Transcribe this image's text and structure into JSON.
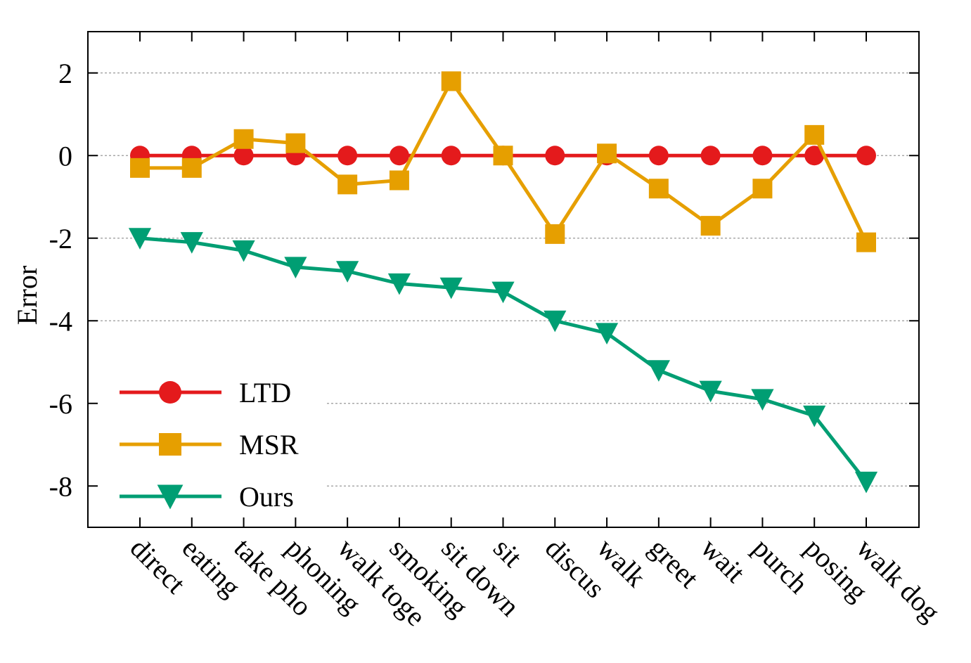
{
  "chart_data": {
    "type": "line",
    "title": "",
    "xlabel": "",
    "ylabel": "Error",
    "categories": [
      "direct",
      "eating",
      "take pho",
      "phoning",
      "walk toge",
      "smoking",
      "sit down",
      "sit",
      "discus",
      "walk",
      "greet",
      "wait",
      "purch",
      "posing",
      "walk dog"
    ],
    "ylim": [
      -9,
      3
    ],
    "yticks": [
      "2",
      "0",
      "-2",
      "-4",
      "-6",
      "-8"
    ],
    "grid": "horizontal dotted",
    "legend_position": "bottom-left",
    "series": [
      {
        "name": "LTD",
        "color": "#e41a1c",
        "marker": "circle",
        "values": [
          0,
          0,
          0,
          0,
          0,
          0,
          0,
          0,
          0,
          0,
          0,
          0,
          0,
          0,
          0
        ]
      },
      {
        "name": "MSR",
        "color": "#e69f00",
        "marker": "square",
        "values": [
          -0.3,
          -0.3,
          0.4,
          0.3,
          -0.7,
          -0.6,
          1.8,
          0.0,
          -1.9,
          0.05,
          -0.8,
          -1.7,
          -0.8,
          0.5,
          -2.1
        ]
      },
      {
        "name": "Ours",
        "color": "#009e73",
        "marker": "triangle-down",
        "values": [
          -2.0,
          -2.1,
          -2.3,
          -2.7,
          -2.8,
          -3.1,
          -3.2,
          -3.3,
          -4.0,
          -4.3,
          -5.2,
          -5.7,
          -5.9,
          -6.3,
          -7.9
        ]
      }
    ]
  }
}
